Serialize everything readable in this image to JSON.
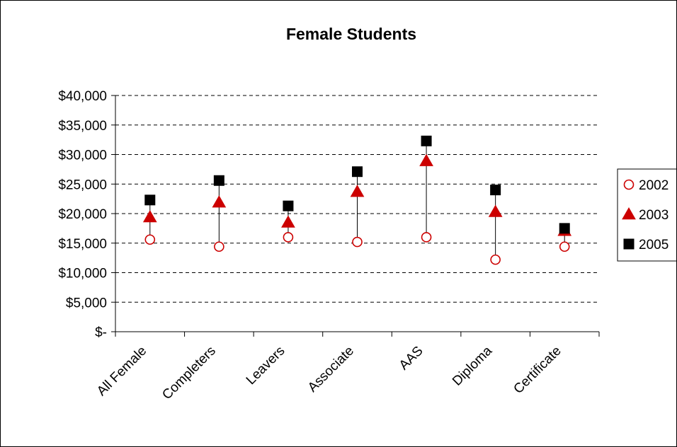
{
  "chart_data": {
    "type": "scatter",
    "title": "Female Students",
    "xlabel": "",
    "ylabel": "",
    "categories": [
      "All Female",
      "Completers",
      "Leavers",
      "Associate",
      "AAS",
      "Diploma",
      "Certificate"
    ],
    "series": [
      {
        "name": "2002",
        "values": [
          15600,
          14400,
          16000,
          15200,
          16000,
          12200,
          14400
        ],
        "marker": "open-circle",
        "color": "#cc0000"
      },
      {
        "name": "2003",
        "values": [
          19400,
          21900,
          18500,
          23700,
          28900,
          20300,
          17100
        ],
        "marker": "triangle",
        "color": "#cc0000"
      },
      {
        "name": "2005",
        "values": [
          22300,
          25600,
          21300,
          27100,
          32300,
          24000,
          17500
        ],
        "marker": "square",
        "color": "#000000"
      }
    ],
    "ylim": [
      0,
      40000
    ],
    "y_ticks": [
      0,
      5000,
      10000,
      15000,
      20000,
      25000,
      30000,
      35000,
      40000
    ],
    "y_tick_labels": [
      "$-",
      "$5,000",
      "$10,000",
      "$15,000",
      "$20,000",
      "$25,000",
      "$30,000",
      "$35,000",
      "$40,000"
    ],
    "grid": "dashed horizontal",
    "legend": "right"
  }
}
